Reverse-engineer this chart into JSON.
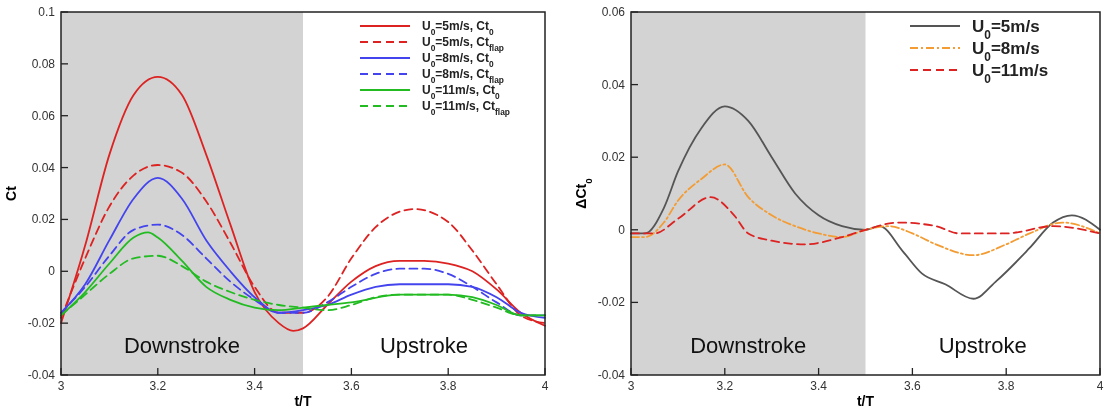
{
  "chart_data": [
    {
      "type": "line",
      "xlabel": "t/T",
      "ylabel": "Ct",
      "xlim": [
        3,
        4
      ],
      "xticks": [
        3,
        3.2,
        3.4,
        3.6,
        3.8,
        4
      ],
      "ylim": [
        -0.04,
        0.1
      ],
      "yticks": [
        -0.04,
        -0.02,
        0,
        0.02,
        0.04,
        0.06,
        0.08,
        0.1
      ],
      "grid": false,
      "legend": "top right",
      "bands": [
        {
          "axis": "x",
          "from": 3,
          "to": 3.5,
          "label": "Downstroke",
          "color": "#d3d3d3"
        }
      ],
      "annotations": [
        "Upstroke"
      ],
      "series": [
        {
          "name": "U$_{0}$=5m/s, Ct$_{0}$",
          "color": "#dd2222",
          "line_style": "solid",
          "x": [
            3.0,
            3.05,
            3.1,
            3.15,
            3.2,
            3.25,
            3.3,
            3.35,
            3.4,
            3.45,
            3.48,
            3.5,
            3.55,
            3.6,
            3.65,
            3.7,
            3.75,
            3.8,
            3.85,
            3.9,
            3.95,
            4.0
          ],
          "values": [
            -0.02,
            0.01,
            0.045,
            0.068,
            0.075,
            0.068,
            0.045,
            0.018,
            -0.008,
            -0.02,
            -0.023,
            -0.022,
            -0.013,
            -0.004,
            0.002,
            0.004,
            0.004,
            0.003,
            0.0,
            -0.007,
            -0.016,
            -0.021
          ]
        },
        {
          "name": "U$_{0}$=5m/s, Ct$_{flap}$",
          "color": "#dd2222",
          "line_style": "dashed",
          "x": [
            3.0,
            3.05,
            3.1,
            3.15,
            3.2,
            3.25,
            3.3,
            3.35,
            3.4,
            3.45,
            3.5,
            3.55,
            3.6,
            3.65,
            3.7,
            3.73,
            3.8,
            3.85,
            3.9,
            3.95,
            4.0
          ],
          "values": [
            -0.018,
            0.005,
            0.025,
            0.037,
            0.041,
            0.038,
            0.027,
            0.011,
            -0.006,
            -0.016,
            -0.016,
            -0.01,
            0.005,
            0.017,
            0.023,
            0.024,
            0.019,
            0.008,
            -0.005,
            -0.017,
            -0.02
          ]
        },
        {
          "name": "U$_{0}$=8m/s, Ct$_{0}$",
          "color": "#4444ee",
          "line_style": "solid",
          "x": [
            3.0,
            3.05,
            3.1,
            3.15,
            3.2,
            3.25,
            3.3,
            3.35,
            3.4,
            3.45,
            3.5,
            3.55,
            3.6,
            3.65,
            3.7,
            3.8,
            3.85,
            3.9,
            3.95,
            4.0
          ],
          "values": [
            -0.016,
            -0.005,
            0.012,
            0.028,
            0.036,
            0.028,
            0.012,
            0.0,
            -0.01,
            -0.016,
            -0.015,
            -0.013,
            -0.009,
            -0.006,
            -0.005,
            -0.005,
            -0.006,
            -0.01,
            -0.016,
            -0.018
          ]
        },
        {
          "name": "U$_{0}$=8m/s, Ct$_{flap}$",
          "color": "#4444ee",
          "line_style": "dashed",
          "x": [
            3.0,
            3.05,
            3.1,
            3.15,
            3.2,
            3.25,
            3.3,
            3.35,
            3.4,
            3.45,
            3.5,
            3.55,
            3.6,
            3.65,
            3.7,
            3.75,
            3.8,
            3.85,
            3.9,
            3.95,
            4.0
          ],
          "values": [
            -0.016,
            -0.006,
            0.006,
            0.016,
            0.018,
            0.014,
            0.005,
            -0.004,
            -0.011,
            -0.016,
            -0.016,
            -0.012,
            -0.006,
            -0.001,
            0.001,
            0.001,
            -0.001,
            -0.006,
            -0.012,
            -0.017,
            -0.017
          ]
        },
        {
          "name": "U$_{0}$=11m/s, Ct$_{0}$",
          "color": "#22bb22",
          "line_style": "solid",
          "x": [
            3.0,
            3.05,
            3.1,
            3.15,
            3.18,
            3.2,
            3.25,
            3.3,
            3.35,
            3.4,
            3.45,
            3.5,
            3.55,
            3.6,
            3.7,
            3.8,
            3.85,
            3.9,
            3.95,
            4.0
          ],
          "values": [
            -0.017,
            -0.008,
            0.003,
            0.013,
            0.015,
            0.013,
            0.004,
            -0.006,
            -0.011,
            -0.014,
            -0.015,
            -0.014,
            -0.013,
            -0.012,
            -0.009,
            -0.009,
            -0.01,
            -0.013,
            -0.017,
            -0.017
          ]
        },
        {
          "name": "U$_{0}$=11m/s, Ct$_{flap}$",
          "color": "#22bb22",
          "line_style": "dashed",
          "x": [
            3.0,
            3.05,
            3.1,
            3.15,
            3.2,
            3.25,
            3.3,
            3.35,
            3.4,
            3.45,
            3.5,
            3.55,
            3.6,
            3.65,
            3.7,
            3.8,
            3.85,
            3.9,
            3.95,
            4.0
          ],
          "values": [
            -0.017,
            -0.009,
            -0.001,
            0.005,
            0.006,
            0.002,
            -0.004,
            -0.008,
            -0.011,
            -0.013,
            -0.014,
            -0.015,
            -0.013,
            -0.01,
            -0.009,
            -0.009,
            -0.011,
            -0.014,
            -0.017,
            -0.017
          ]
        }
      ]
    },
    {
      "type": "line",
      "xlabel": "t/T",
      "ylabel": "ΔCt$_{0}$",
      "xlim": [
        3,
        4
      ],
      "xticks": [
        3,
        3.2,
        3.4,
        3.6,
        3.8,
        4
      ],
      "ylim": [
        -0.04,
        0.06
      ],
      "yticks": [
        -0.04,
        -0.02,
        0,
        0.02,
        0.04,
        0.06
      ],
      "grid": false,
      "legend": "top right",
      "bands": [
        {
          "axis": "x",
          "from": 3,
          "to": 3.5,
          "label": "Downstroke",
          "color": "#d3d3d3"
        }
      ],
      "annotations": [
        "Upstroke"
      ],
      "series": [
        {
          "name": "U$_{0}$=5m/s",
          "color": "#555555",
          "line_style": "solid",
          "x": [
            3.0,
            3.03,
            3.07,
            3.1,
            3.15,
            3.2,
            3.25,
            3.3,
            3.35,
            3.4,
            3.45,
            3.5,
            3.53,
            3.58,
            3.62,
            3.67,
            3.73,
            3.78,
            3.85,
            3.9,
            3.94,
            4.0
          ],
          "values": [
            -0.001,
            -0.001,
            0.006,
            0.016,
            0.028,
            0.034,
            0.03,
            0.02,
            0.01,
            0.004,
            0.001,
            0.0,
            0.001,
            -0.006,
            -0.012,
            -0.015,
            -0.019,
            -0.014,
            -0.005,
            0.002,
            0.004,
            0.0
          ]
        },
        {
          "name": "U$_{0}$=8m/s",
          "color": "#f39c33",
          "line_style": "dashdot",
          "x": [
            3.0,
            3.03,
            3.07,
            3.1,
            3.15,
            3.2,
            3.25,
            3.3,
            3.35,
            3.4,
            3.45,
            3.5,
            3.55,
            3.6,
            3.65,
            3.73,
            3.8,
            3.85,
            3.92,
            4.0
          ],
          "values": [
            -0.002,
            -0.002,
            0.002,
            0.008,
            0.014,
            0.018,
            0.009,
            0.004,
            0.001,
            -0.001,
            -0.002,
            0.0,
            0.001,
            -0.001,
            -0.004,
            -0.007,
            -0.004,
            -0.001,
            0.002,
            -0.001
          ]
        },
        {
          "name": "U$_{0}$=11m/s",
          "color": "#dd2222",
          "line_style": "dashed",
          "x": [
            3.0,
            3.05,
            3.1,
            3.17,
            3.22,
            3.25,
            3.3,
            3.37,
            3.45,
            3.5,
            3.57,
            3.65,
            3.7,
            3.8,
            3.9,
            4.0
          ],
          "values": [
            -0.001,
            -0.001,
            0.003,
            0.009,
            0.004,
            -0.001,
            -0.003,
            -0.004,
            -0.002,
            0.0,
            0.002,
            0.001,
            -0.001,
            -0.001,
            0.001,
            -0.001
          ]
        }
      ]
    }
  ]
}
